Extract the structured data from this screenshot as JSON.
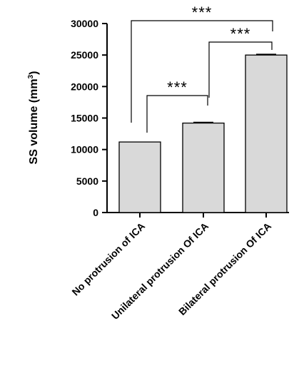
{
  "chart_data": {
    "type": "bar",
    "categories": [
      "No protrusion of ICA",
      "Unilateral protrusion Of ICA",
      "Bilateral protrusion Of ICA"
    ],
    "values": [
      11200,
      14200,
      25000
    ],
    "errors": [
      0,
      120,
      120
    ],
    "ylabel_main": "SS volume (mm",
    "ylabel_sup": "3",
    "ylabel_end": ")",
    "ylim": [
      0,
      30000
    ],
    "yticks": [
      0,
      5000,
      10000,
      15000,
      20000,
      25000,
      30000
    ],
    "grid": false,
    "legend": "none",
    "bar_color": "#d9d9d9",
    "significance": [
      {
        "from": 0,
        "to": 1,
        "label": "***"
      },
      {
        "from": 1,
        "to": 2,
        "label": "***"
      },
      {
        "from": 0,
        "to": 2,
        "label": "***"
      }
    ]
  }
}
